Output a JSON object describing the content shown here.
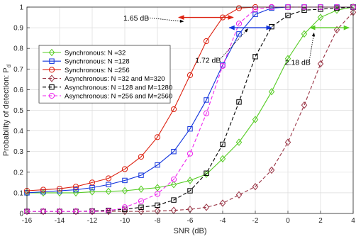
{
  "chart_data": {
    "type": "line",
    "xlabel": "SNR (dB)",
    "ylabel": "Probability of detection: P",
    "ylabel_sub": "d",
    "xlim": [
      -16,
      4
    ],
    "ylim": [
      0,
      1
    ],
    "xticks": [
      -16,
      -14,
      -12,
      -10,
      -8,
      -6,
      -4,
      -2,
      0,
      2,
      4
    ],
    "yticks": [
      0,
      0.1,
      0.2,
      0.3,
      0.4,
      0.5,
      0.6,
      0.7,
      0.8,
      0.9,
      1
    ],
    "grid": true,
    "legend_position": "left-middle",
    "x": [
      -16,
      -15,
      -14,
      -13,
      -12,
      -11,
      -10,
      -9,
      -8,
      -7,
      -6,
      -5,
      -4,
      -3,
      -2,
      -1,
      0,
      1,
      2,
      3,
      4
    ],
    "series": [
      {
        "name": "Synchronous: N =32",
        "color": "#55cc22",
        "dash": "solid",
        "marker": "diamond",
        "values": [
          0.1,
          0.1,
          0.1,
          0.1,
          0.105,
          0.107,
          0.11,
          0.118,
          0.125,
          0.14,
          0.16,
          0.19,
          0.265,
          0.345,
          0.455,
          0.59,
          0.75,
          0.87,
          0.95,
          0.985,
          1.0
        ]
      },
      {
        "name": "Synchronous: N =128",
        "color": "#1133dd",
        "dash": "solid",
        "marker": "square",
        "values": [
          0.1,
          0.105,
          0.11,
          0.115,
          0.125,
          0.14,
          0.16,
          0.185,
          0.235,
          0.3,
          0.41,
          0.55,
          0.72,
          0.87,
          0.965,
          0.995,
          1.0,
          1.0,
          1.0,
          1.0,
          1.0
        ]
      },
      {
        "name": "Synchronous: N =256",
        "color": "#dd2211",
        "dash": "solid",
        "marker": "circle",
        "values": [
          0.11,
          0.115,
          0.12,
          0.13,
          0.15,
          0.17,
          0.215,
          0.275,
          0.37,
          0.505,
          0.67,
          0.835,
          0.95,
          0.995,
          1.0,
          1.0,
          1.0,
          1.0,
          1.0,
          1.0,
          1.0
        ]
      },
      {
        "name": "Asynchronous: N =32 and M=320",
        "color": "#993344",
        "dash": "dashed",
        "marker": "diamond",
        "values": [
          0.01,
          0.01,
          0.01,
          0.01,
          0.01,
          0.01,
          0.01,
          0.01,
          0.012,
          0.015,
          0.02,
          0.03,
          0.05,
          0.09,
          0.13,
          0.21,
          0.345,
          0.525,
          0.725,
          0.89,
          0.975
        ]
      },
      {
        "name": "Asynchronous: N =128 and M=1280",
        "color": "#000000",
        "dash": "dashed",
        "marker": "square",
        "values": [
          0.01,
          0.01,
          0.01,
          0.01,
          0.012,
          0.015,
          0.02,
          0.03,
          0.04,
          0.065,
          0.11,
          0.195,
          0.335,
          0.54,
          0.76,
          0.905,
          0.96,
          0.985,
          0.99,
          0.995,
          1.0
        ]
      },
      {
        "name": "Asynchronous: N =256 and M=2560",
        "color": "#ee22ee",
        "dash": "dashed",
        "marker": "circle",
        "values": [
          0.01,
          0.01,
          0.01,
          0.01,
          0.01,
          0.012,
          0.03,
          0.06,
          0.095,
          0.165,
          0.29,
          0.485,
          0.715,
          0.92,
          0.99,
          1.0,
          1.0,
          1.0,
          1.0,
          1.0,
          1.0
        ]
      }
    ],
    "annotations": [
      {
        "text": "1.65 dB",
        "x_from": -6.7,
        "x_to": -3.35,
        "y": 0.95,
        "color": "#dd2211",
        "label_x": -9.3,
        "label_y": 0.935,
        "pointer_to_x": -6.4,
        "pointer_to_y": 0.93
      },
      {
        "text": "1.72 dB",
        "x_from": -3.6,
        "x_to": -1.0,
        "y": 0.9,
        "color": "#1133dd",
        "label_x": -4.9,
        "label_y": 0.73,
        "pointer_to_x": -2.45,
        "pointer_to_y": 0.895
      },
      {
        "text": "2.18 dB",
        "x_from": 1.35,
        "x_to": 3.75,
        "y": 0.9,
        "color": "#55cc22",
        "label_x": 0.6,
        "label_y": 0.72,
        "pointer_to_x": 1.6,
        "pointer_to_y": 0.875
      }
    ]
  }
}
